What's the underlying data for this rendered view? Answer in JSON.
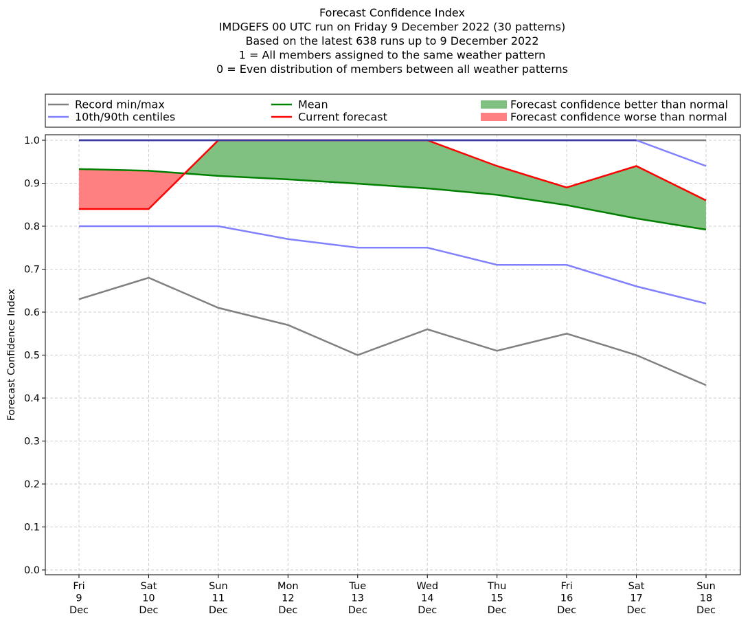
{
  "chart_data": {
    "type": "line",
    "title_lines": [
      "Forecast Confidence Index",
      "IMDGEFS 00 UTC run on Friday 9 December 2022 (30 patterns)",
      "Based on the latest 638 runs up to 9 December 2022",
      "1 = All members assigned to the same weather pattern",
      "0 = Even distribution of members between all weather patterns"
    ],
    "ylabel": "Forecast Confidence Index",
    "xlabel": "",
    "ylim": [
      0,
      1
    ],
    "yticks": [
      "0.0",
      "0.1",
      "0.2",
      "0.3",
      "0.4",
      "0.5",
      "0.6",
      "0.7",
      "0.8",
      "0.9",
      "1.0"
    ],
    "categories": [
      [
        "Fri",
        "9",
        "Dec"
      ],
      [
        "Sat",
        "10",
        "Dec"
      ],
      [
        "Sun",
        "11",
        "Dec"
      ],
      [
        "Mon",
        "12",
        "Dec"
      ],
      [
        "Tue",
        "13",
        "Dec"
      ],
      [
        "Wed",
        "14",
        "Dec"
      ],
      [
        "Thu",
        "15",
        "Dec"
      ],
      [
        "Fri",
        "16",
        "Dec"
      ],
      [
        "Sat",
        "17",
        "Dec"
      ],
      [
        "Sun",
        "18",
        "Dec"
      ]
    ],
    "grid": true,
    "legend_position": "top",
    "series": [
      {
        "key": "record_min",
        "name": "Record min/max",
        "color": "#808080",
        "values": [
          0.63,
          0.68,
          0.61,
          0.57,
          0.5,
          0.56,
          0.51,
          0.55,
          0.5,
          0.43
        ]
      },
      {
        "key": "record_max",
        "name": "Record min/max",
        "color": "#808080",
        "values": [
          1.0,
          1.0,
          1.0,
          1.0,
          1.0,
          1.0,
          1.0,
          1.0,
          1.0,
          1.0
        ]
      },
      {
        "key": "p10",
        "name": "10th/90th centiles",
        "color": "#8080ff",
        "values": [
          0.8,
          0.8,
          0.8,
          0.77,
          0.75,
          0.75,
          0.71,
          0.71,
          0.66,
          0.62
        ]
      },
      {
        "key": "p90",
        "name": "10th/90th centiles",
        "color": "#8080ff",
        "values": [
          1.0,
          1.0,
          1.0,
          1.0,
          1.0,
          1.0,
          1.0,
          1.0,
          1.0,
          0.94
        ]
      },
      {
        "key": "mean",
        "name": "Mean",
        "color": "#008000",
        "values": [
          0.933,
          0.929,
          0.917,
          0.909,
          0.899,
          0.888,
          0.873,
          0.849,
          0.818,
          0.792
        ]
      },
      {
        "key": "current",
        "name": "Current forecast",
        "color": "#ff0000",
        "values": [
          0.84,
          0.84,
          1.0,
          1.0,
          1.0,
          1.0,
          0.94,
          0.89,
          0.94,
          0.86
        ]
      }
    ],
    "legend": [
      {
        "label": "Record min/max",
        "kind": "line",
        "color": "#808080"
      },
      {
        "label": "10th/90th centiles",
        "kind": "line",
        "color": "#8080ff"
      },
      {
        "label": "Mean",
        "kind": "line",
        "color": "#008000"
      },
      {
        "label": "Current forecast",
        "kind": "line",
        "color": "#ff0000"
      },
      {
        "label": "Forecast confidence better than normal",
        "kind": "patch",
        "color": "#80c080"
      },
      {
        "label": "Forecast confidence worse than normal",
        "kind": "patch",
        "color": "#ff8080"
      }
    ],
    "fills": {
      "better_color": "#80c080",
      "worse_color": "#ff8080"
    }
  }
}
